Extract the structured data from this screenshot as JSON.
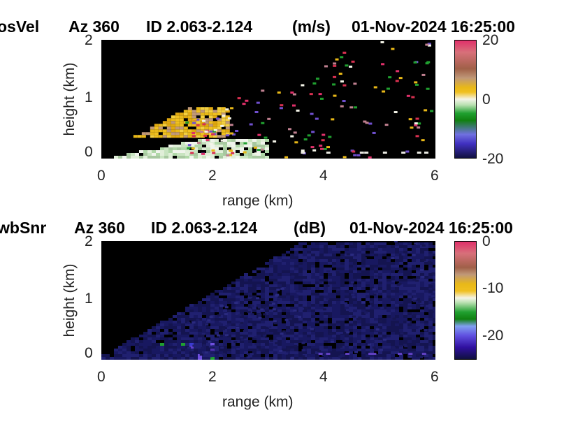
{
  "panels": [
    {
      "title": {
        "variable": "osVel",
        "azimuth": "Az 360",
        "id": "ID 2.063-2.124",
        "units": "(m/s)",
        "datetime": "01-Nov-2024 16:25:00"
      },
      "xlabel": "range (km)",
      "ylabel": "height (km)",
      "xticks": [
        "0",
        "2",
        "4",
        "6"
      ],
      "yticks": [
        "0",
        "1",
        "2"
      ],
      "colorbar": {
        "ticks": [
          "20",
          "0",
          "-20"
        ],
        "range": [
          -20,
          20
        ]
      }
    },
    {
      "title": {
        "variable": "wbSnr",
        "azimuth": "Az 360",
        "id": "ID 2.063-2.124",
        "units": "(dB)",
        "datetime": "01-Nov-2024 16:25:00"
      },
      "xlabel": "range (km)",
      "ylabel": "height (km)",
      "xticks": [
        "0",
        "2",
        "4",
        "6"
      ],
      "yticks": [
        "0",
        "1",
        "2"
      ],
      "colorbar": {
        "ticks": [
          "0",
          "-10",
          "-20"
        ],
        "range": [
          -25,
          0
        ]
      }
    }
  ],
  "chart_data": [
    {
      "type": "heatmap",
      "title": "osVel    Az 360   ID 2.063-2.124   (m/s)   01-Nov-2024 16:25:00",
      "xlabel": "range (km)",
      "ylabel": "height (km)",
      "xlim": [
        0,
        6
      ],
      "ylim": [
        0,
        2
      ],
      "xticks": [
        0,
        2,
        4,
        6
      ],
      "yticks": [
        0,
        1,
        2
      ],
      "color_range": [
        -20,
        20
      ],
      "colorbar_ticks": [
        20,
        0,
        -20
      ],
      "regions": [
        {
          "label": "near-zero velocity (light green/white)",
          "range_km": [
            0,
            3.0
          ],
          "height_km": [
            0,
            0.35
          ],
          "value": -2
        },
        {
          "label": "positive velocity (yellow/orange)",
          "range_km": [
            0.5,
            2.3
          ],
          "height_km": [
            0.35,
            0.9
          ],
          "value": 4
        },
        {
          "label": "scattered noise pixels",
          "range_km": [
            2.0,
            6.0
          ],
          "height_km": [
            0,
            2.0
          ],
          "value": "mixed"
        }
      ]
    },
    {
      "type": "heatmap",
      "title": "wbSnr    Az 360   ID 2.063-2.124   (dB)   01-Nov-2024 16:25:00",
      "xlabel": "range (km)",
      "ylabel": "height (km)",
      "xlim": [
        0,
        6
      ],
      "ylim": [
        0,
        2
      ],
      "xticks": [
        0,
        2,
        4,
        6
      ],
      "yticks": [
        0,
        1,
        2
      ],
      "color_range": [
        -25,
        0
      ],
      "colorbar_ticks": [
        0,
        -10,
        -20
      ],
      "regions": [
        {
          "label": "strong SNR wedge (purple/blue)",
          "range_km": [
            0,
            2.0
          ],
          "height_km": [
            0,
            0.35
          ],
          "value": -21
        },
        {
          "label": "weak SNR extension (dark blue)",
          "range_km": [
            0,
            6.0
          ],
          "height_km": [
            0,
            2.0
          ],
          "value": -25
        }
      ]
    }
  ]
}
